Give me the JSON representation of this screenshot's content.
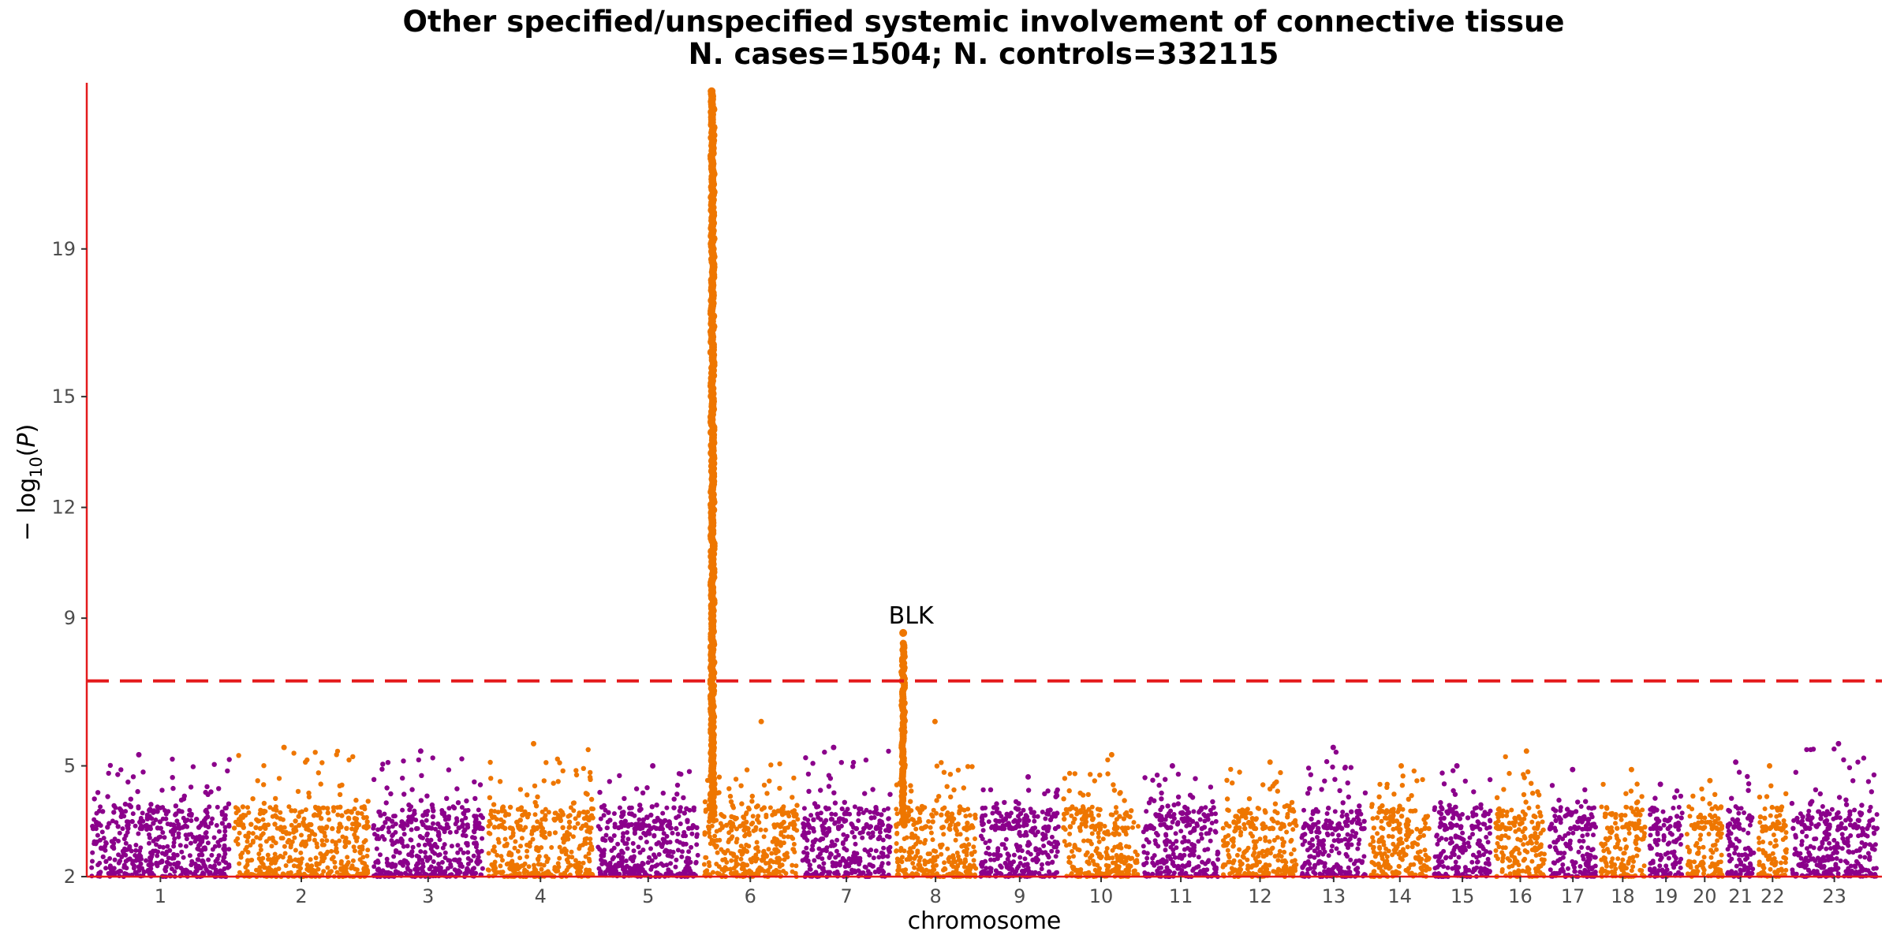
{
  "chart_data": {
    "type": "scatter",
    "title": "Other specified/unspecified systemic involvement of connective tissue",
    "subtitle": "N. cases=1504; N. controls=332115",
    "xlabel": "chromosome",
    "ylabel": "−log10(P)",
    "ylim": [
      2,
      23.5
    ],
    "yticks": [
      2,
      5,
      9,
      12,
      15,
      19
    ],
    "significance_threshold": 7.3,
    "colors": {
      "odd_chromosome": "#8B008B",
      "even_chromosome": "#EE7600",
      "axis": "#E41A1C",
      "threshold_line": "#E41A1C"
    },
    "chromosomes": [
      {
        "label": "1",
        "size": 249,
        "peak": 5.3
      },
      {
        "label": "2",
        "size": 243,
        "peak": 5.5
      },
      {
        "label": "3",
        "size": 198,
        "peak": 5.4
      },
      {
        "label": "4",
        "size": 191,
        "peak": 5.6
      },
      {
        "label": "5",
        "size": 181,
        "peak": 5.0
      },
      {
        "label": "6",
        "size": 171,
        "peak": 23.3
      },
      {
        "label": "7",
        "size": 159,
        "peak": 5.5
      },
      {
        "label": "8",
        "size": 146,
        "peak": 8.6
      },
      {
        "label": "9",
        "size": 141,
        "peak": 4.7
      },
      {
        "label": "10",
        "size": 136,
        "peak": 5.3
      },
      {
        "label": "11",
        "size": 135,
        "peak": 5.0
      },
      {
        "label": "12",
        "size": 134,
        "peak": 5.1
      },
      {
        "label": "13",
        "size": 115,
        "peak": 5.5
      },
      {
        "label": "14",
        "size": 107,
        "peak": 5.0
      },
      {
        "label": "15",
        "size": 102,
        "peak": 5.0
      },
      {
        "label": "16",
        "size": 90,
        "peak": 5.4
      },
      {
        "label": "17",
        "size": 83,
        "peak": 4.9
      },
      {
        "label": "18",
        "size": 80,
        "peak": 4.9
      },
      {
        "label": "19",
        "size": 59,
        "peak": 4.5
      },
      {
        "label": "20",
        "size": 64,
        "peak": 4.6
      },
      {
        "label": "21",
        "size": 48,
        "peak": 5.1
      },
      {
        "label": "22",
        "size": 51,
        "peak": 5.0
      },
      {
        "label": "23",
        "size": 155,
        "peak": 5.6
      }
    ],
    "annotations": [
      {
        "label": "BLK",
        "chromosome": "8",
        "x": 11.4,
        "y": 8.6
      }
    ]
  }
}
